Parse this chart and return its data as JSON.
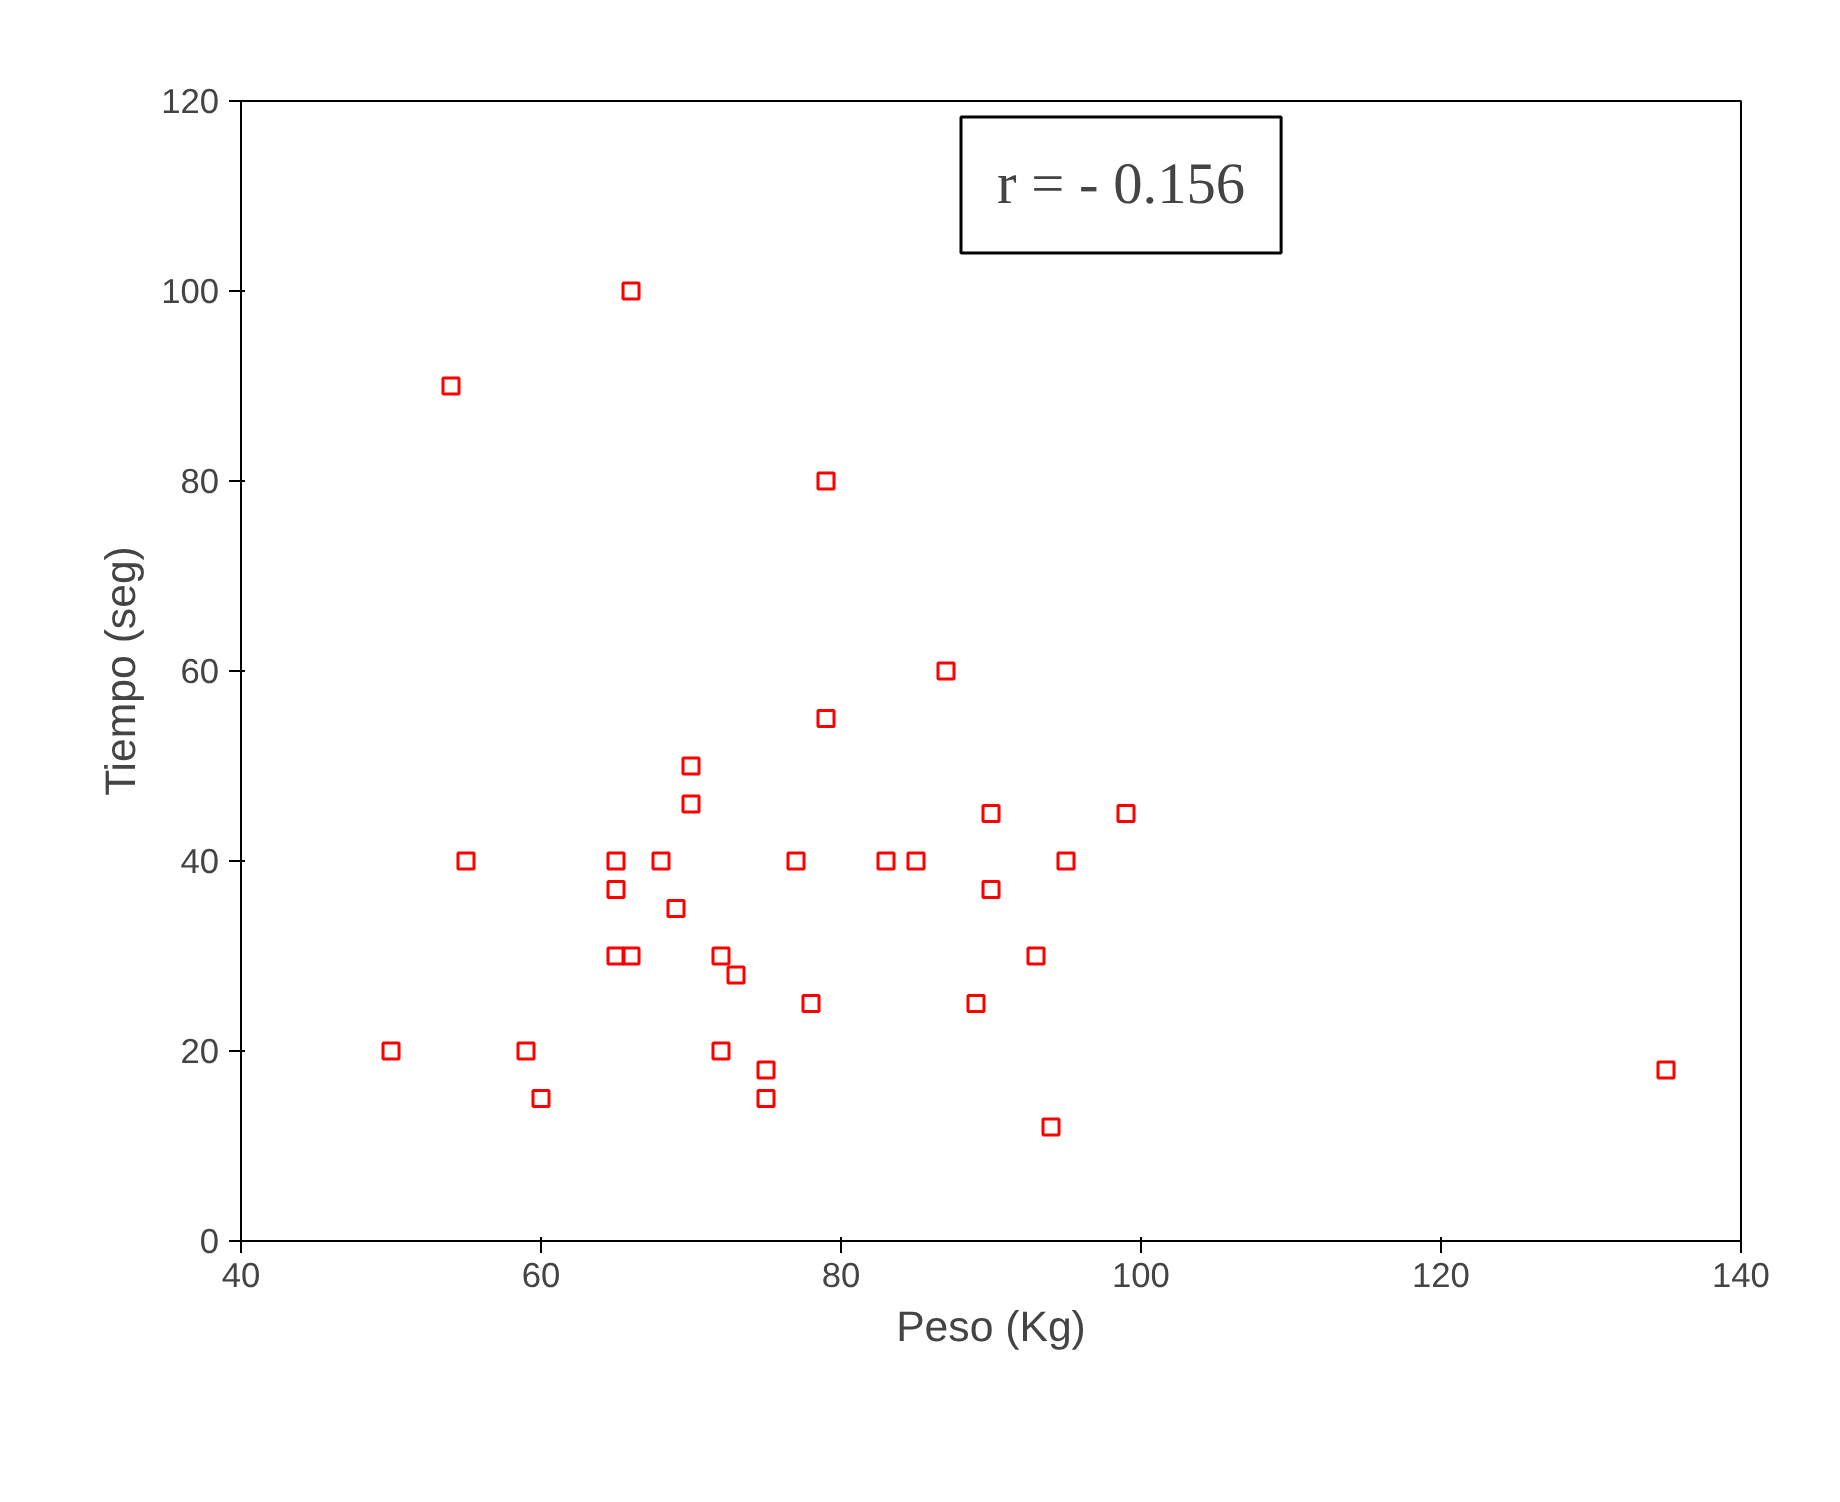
{
  "chart_data": {
    "type": "scatter",
    "xlabel": "Peso (Kg)",
    "ylabel": "Tiempo (seg)",
    "annotations": [
      "r = - 0.156"
    ],
    "x": [
      50,
      54,
      55,
      66,
      59,
      60,
      65,
      65,
      65,
      66,
      68,
      70,
      70,
      69,
      72,
      72,
      73,
      75,
      75,
      77,
      78,
      79,
      79,
      83,
      85,
      87,
      90,
      90,
      89,
      93,
      94,
      95,
      99,
      135
    ],
    "series": [
      {
        "color": "#ff0000",
        "values": [
          20,
          90,
          40,
          100,
          20,
          15,
          40,
          37,
          30,
          30,
          40,
          50,
          46,
          35,
          30,
          20,
          28,
          18,
          15,
          40,
          25,
          80,
          55,
          40,
          40,
          60,
          45,
          37,
          25,
          30,
          12,
          40,
          45,
          18
        ]
      }
    ],
    "xlim": [
      40,
      140
    ],
    "ylim": [
      0,
      120
    ],
    "xticks": [
      40,
      60,
      80,
      100,
      120,
      140
    ],
    "yticks": [
      0,
      20,
      40,
      60,
      80,
      100,
      120
    ],
    "grid": false,
    "marker": "square"
  }
}
